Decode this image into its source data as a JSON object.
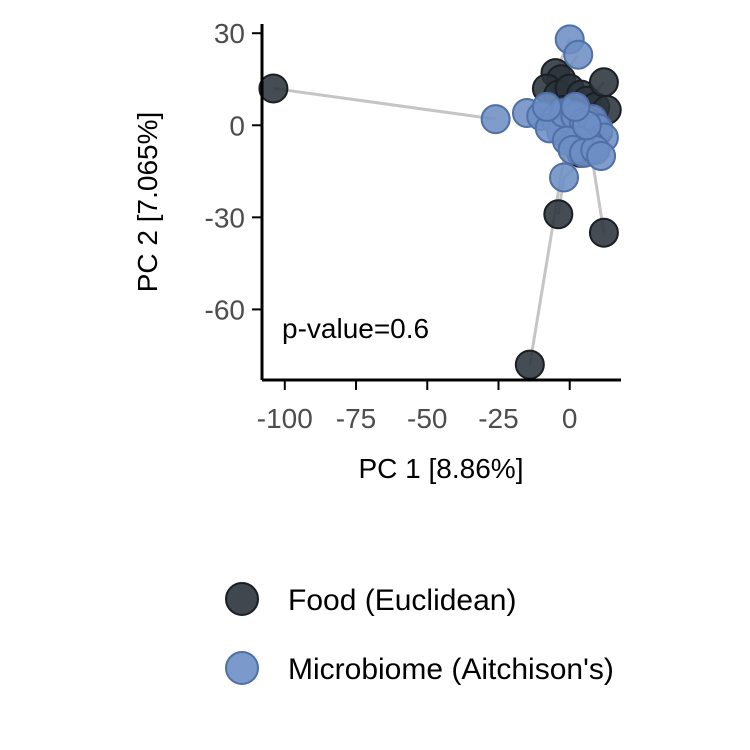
{
  "chart_data": {
    "type": "scatter",
    "title": "",
    "xlabel": "PC 1 [8.86%]",
    "ylabel": "PC 2 [7.065%]",
    "xlim": [
      -108,
      18
    ],
    "ylim": [
      -83,
      33
    ],
    "x_ticks": [
      -100,
      -75,
      -50,
      -25,
      0
    ],
    "y_ticks": [
      30,
      0,
      -30,
      -60
    ],
    "x_tick_labels": [
      "-100",
      "-75",
      "-50",
      "-25",
      "0"
    ],
    "y_tick_labels": [
      "30",
      "0",
      "-30",
      "-60"
    ],
    "grid": false,
    "annotation": "p-value=0.6",
    "legend_position": "bottom",
    "series": [
      {
        "name": "Food (Euclidean)",
        "color": "#2b333b",
        "points": [
          [
            -104,
            12
          ],
          [
            -5,
            17
          ],
          [
            -3,
            15
          ],
          [
            -8,
            12
          ],
          [
            -4,
            10
          ],
          [
            0,
            12
          ],
          [
            4,
            10
          ],
          [
            6,
            8
          ],
          [
            9,
            6
          ],
          [
            12,
            14
          ],
          [
            13,
            5
          ],
          [
            -2,
            5
          ],
          [
            2,
            4
          ],
          [
            5,
            2
          ],
          [
            8,
            0
          ],
          [
            10,
            -2
          ],
          [
            6,
            -6
          ],
          [
            3,
            -5
          ],
          [
            -1,
            -3
          ],
          [
            4,
            -9
          ],
          [
            7,
            -3
          ],
          [
            9,
            -8
          ],
          [
            -4,
            -29
          ],
          [
            12,
            -35
          ],
          [
            -14,
            -78
          ]
        ]
      },
      {
        "name": "Microbiome (Aitchison's)",
        "color": "#6d8ec4",
        "points": [
          [
            0,
            28
          ],
          [
            3,
            23
          ],
          [
            -26,
            2
          ],
          [
            -15,
            4
          ],
          [
            -10,
            3
          ],
          [
            -5,
            2
          ],
          [
            -3,
            -2
          ],
          [
            -7,
            -1
          ],
          [
            -2,
            4
          ],
          [
            2,
            3
          ],
          [
            5,
            1
          ],
          [
            8,
            2
          ],
          [
            10,
            -1
          ],
          [
            12,
            -4
          ],
          [
            7,
            -6
          ],
          [
            3,
            -5
          ],
          [
            -1,
            -5
          ],
          [
            1,
            -8
          ],
          [
            5,
            -9
          ],
          [
            9,
            -8
          ],
          [
            11,
            -10
          ],
          [
            -2,
            -17
          ],
          [
            6,
            0
          ],
          [
            2,
            6
          ],
          [
            -8,
            6
          ]
        ]
      }
    ],
    "pairs": [
      [
        0,
        2
      ],
      [
        1,
        0
      ],
      [
        2,
        1
      ],
      [
        3,
        3
      ],
      [
        4,
        4
      ],
      [
        5,
        5
      ],
      [
        6,
        6
      ],
      [
        7,
        7
      ],
      [
        8,
        8
      ],
      [
        9,
        9
      ],
      [
        10,
        10
      ],
      [
        11,
        11
      ],
      [
        12,
        12
      ],
      [
        13,
        13
      ],
      [
        14,
        14
      ],
      [
        15,
        15
      ],
      [
        16,
        16
      ],
      [
        17,
        17
      ],
      [
        18,
        18
      ],
      [
        19,
        19
      ],
      [
        20,
        20
      ],
      [
        21,
        21
      ],
      [
        22,
        21
      ],
      [
        23,
        22
      ],
      [
        24,
        16
      ]
    ],
    "pair_line_color": "#bfbfbf"
  }
}
